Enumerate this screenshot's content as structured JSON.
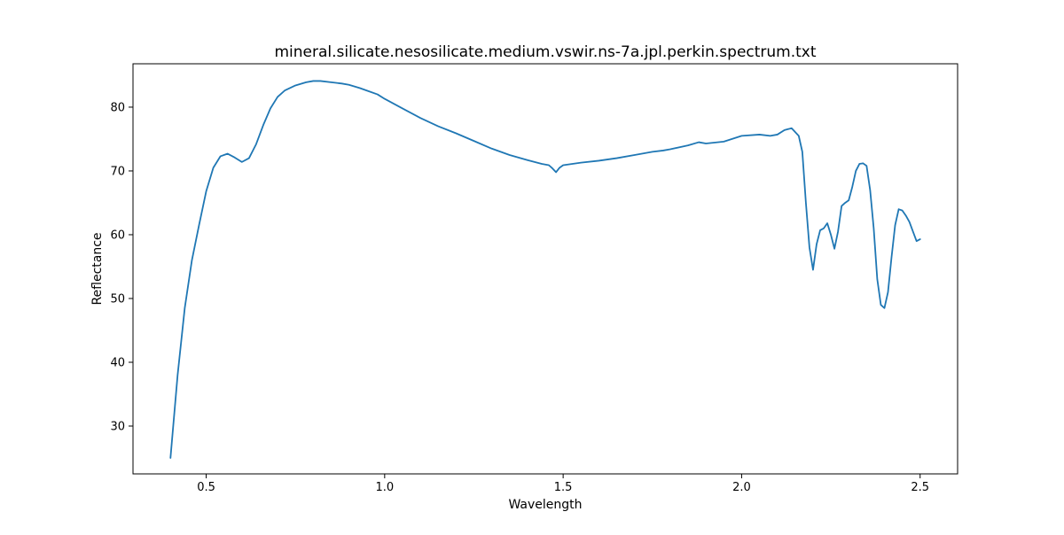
{
  "chart_data": {
    "type": "line",
    "title": "mineral.silicate.nesosilicate.medium.vswir.ns-7a.jpl.perkin.spectrum.txt",
    "xlabel": "Wavelength",
    "ylabel": "Reflectance",
    "xlim": [
      0.295,
      2.605
    ],
    "ylim": [
      22.5,
      86.8
    ],
    "xticks": [
      0.5,
      1.0,
      1.5,
      2.0,
      2.5
    ],
    "xtick_labels": [
      "0.5",
      "1.0",
      "1.5",
      "2.0",
      "2.5"
    ],
    "yticks": [
      30,
      40,
      50,
      60,
      70,
      80
    ],
    "ytick_labels": [
      "30",
      "40",
      "50",
      "60",
      "70",
      "80"
    ],
    "grid": false,
    "line_color": "#1f77b4",
    "series": [
      {
        "x": [
          0.4,
          0.42,
          0.44,
          0.46,
          0.48,
          0.5,
          0.52,
          0.54,
          0.56,
          0.58,
          0.6,
          0.62,
          0.64,
          0.66,
          0.68,
          0.7,
          0.72,
          0.75,
          0.78,
          0.8,
          0.82,
          0.85,
          0.88,
          0.9,
          0.93,
          0.95,
          0.98,
          1.0,
          1.05,
          1.1,
          1.15,
          1.2,
          1.25,
          1.3,
          1.35,
          1.4,
          1.44,
          1.46,
          1.47,
          1.48,
          1.49,
          1.5,
          1.55,
          1.6,
          1.65,
          1.7,
          1.75,
          1.78,
          1.8,
          1.85,
          1.88,
          1.9,
          1.95,
          2.0,
          2.05,
          2.08,
          2.1,
          2.12,
          2.14,
          2.16,
          2.17,
          2.18,
          2.19,
          2.2,
          2.21,
          2.22,
          2.23,
          2.24,
          2.25,
          2.26,
          2.27,
          2.28,
          2.29,
          2.3,
          2.31,
          2.32,
          2.33,
          2.34,
          2.35,
          2.36,
          2.37,
          2.38,
          2.39,
          2.4,
          2.41,
          2.42,
          2.43,
          2.44,
          2.45,
          2.46,
          2.47,
          2.48,
          2.49,
          2.5
        ],
        "y": [
          25.0,
          38.0,
          48.5,
          56.0,
          61.5,
          66.8,
          70.5,
          72.3,
          72.7,
          72.1,
          71.4,
          72.0,
          74.2,
          77.2,
          79.8,
          81.6,
          82.6,
          83.4,
          83.9,
          84.1,
          84.1,
          83.9,
          83.7,
          83.5,
          83.0,
          82.6,
          82.0,
          81.3,
          79.8,
          78.3,
          77.0,
          75.9,
          74.7,
          73.5,
          72.5,
          71.7,
          71.1,
          70.9,
          70.4,
          69.8,
          70.5,
          70.9,
          71.3,
          71.6,
          72.0,
          72.5,
          73.0,
          73.2,
          73.4,
          74.0,
          74.5,
          74.3,
          74.6,
          75.5,
          75.7,
          75.5,
          75.7,
          76.4,
          76.7,
          75.5,
          73.0,
          65.0,
          58.0,
          54.5,
          58.5,
          60.7,
          61.0,
          61.8,
          60.0,
          57.8,
          60.5,
          64.5,
          65.0,
          65.4,
          67.5,
          70.0,
          71.1,
          71.2,
          70.8,
          67.0,
          61.0,
          53.0,
          49.0,
          48.5,
          51.0,
          56.5,
          61.5,
          64.0,
          63.8,
          63.0,
          62.0,
          60.5,
          59.0,
          59.3
        ]
      }
    ]
  }
}
